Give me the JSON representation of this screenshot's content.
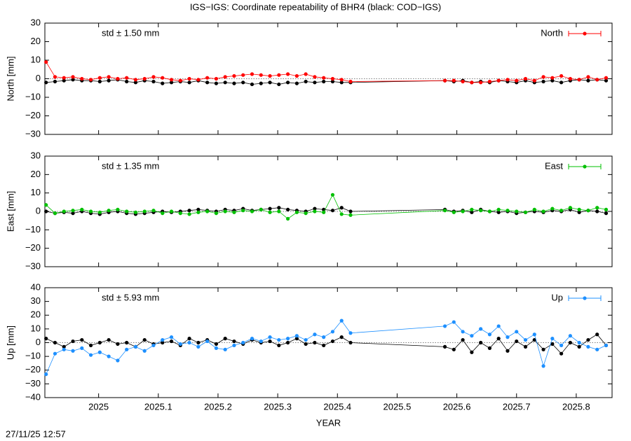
{
  "title": "IGS−IGS: Coordinate repeatability of BHR4 (black: COD−IGS)",
  "timestamp": "27/11/25 12:57",
  "chart_data": [
    {
      "type": "line",
      "ylabel": "North [mm]",
      "annotation": "std ± 1.50 mm",
      "x": [
        2024.912,
        2024.927,
        2024.942,
        2024.957,
        2024.972,
        2024.987,
        2025.002,
        2025.017,
        2025.032,
        2025.047,
        2025.062,
        2025.077,
        2025.092,
        2025.107,
        2025.122,
        2025.137,
        2025.152,
        2025.167,
        2025.182,
        2025.197,
        2025.212,
        2025.227,
        2025.242,
        2025.257,
        2025.272,
        2025.287,
        2025.302,
        2025.317,
        2025.332,
        2025.347,
        2025.362,
        2025.377,
        2025.392,
        2025.407,
        2025.422,
        2025.58,
        2025.595,
        2025.61,
        2025.625,
        2025.64,
        2025.655,
        2025.67,
        2025.685,
        2025.7,
        2025.715,
        2025.73,
        2025.745,
        2025.76,
        2025.775,
        2025.79,
        2025.805,
        2025.82,
        2025.835,
        2025.85
      ],
      "xlim": [
        2024.91,
        2025.86
      ],
      "ylim": [
        -30,
        30
      ],
      "yticks": [
        30,
        20,
        10,
        0,
        {
          "value": -10,
          "label": "−10"
        },
        {
          "value": -20,
          "label": "−20"
        },
        {
          "value": -30,
          "label": "−30"
        }
      ],
      "grid": false,
      "legend": "top-right",
      "series": [
        {
          "color": "#000000",
          "values": [
            -2,
            -1.5,
            -1,
            -0.5,
            -1,
            -1,
            -1.5,
            -1,
            -0.5,
            -1.5,
            -2,
            -1,
            -1.5,
            -2.5,
            -2,
            -1.5,
            -2,
            -1,
            -2,
            -2.5,
            -2,
            -2.5,
            -2,
            -3,
            -2.5,
            -2,
            -3,
            -2,
            -2.5,
            -1.5,
            -2,
            -1.5,
            -1.5,
            -2,
            -2,
            -1,
            -1.5,
            -1,
            -2,
            -1.5,
            -2,
            -1,
            -1.5,
            -2,
            -1,
            -2,
            -1.5,
            -1,
            -2,
            -1,
            -0.5,
            -1,
            -0.5,
            -1
          ]
        },
        {
          "name": "North",
          "color": "#ff0000",
          "values": [
            9,
            1,
            0.5,
            1,
            0,
            -0.5,
            0.5,
            1,
            0,
            0.5,
            -0.5,
            0,
            1,
            0.5,
            -0.5,
            -1,
            0,
            -0.5,
            0.5,
            0,
            1,
            1.5,
            2,
            2.5,
            2,
            1.5,
            2,
            2.5,
            1.5,
            2.5,
            1,
            0.5,
            0,
            -0.5,
            -1.5,
            -1,
            -1,
            -1.5,
            -2,
            -2,
            -1.5,
            -1,
            -0.5,
            -1,
            0,
            -1,
            1,
            0.5,
            1.5,
            0,
            -0.5,
            1,
            -0.5,
            0.5
          ]
        }
      ]
    },
    {
      "type": "line",
      "ylabel": "East [mm]",
      "annotation": "std ± 1.35 mm",
      "x": [
        2024.912,
        2024.927,
        2024.942,
        2024.957,
        2024.972,
        2024.987,
        2025.002,
        2025.017,
        2025.032,
        2025.047,
        2025.062,
        2025.077,
        2025.092,
        2025.107,
        2025.122,
        2025.137,
        2025.152,
        2025.167,
        2025.182,
        2025.197,
        2025.212,
        2025.227,
        2025.242,
        2025.257,
        2025.272,
        2025.287,
        2025.302,
        2025.317,
        2025.332,
        2025.347,
        2025.362,
        2025.377,
        2025.392,
        2025.407,
        2025.422,
        2025.58,
        2025.595,
        2025.61,
        2025.625,
        2025.64,
        2025.655,
        2025.67,
        2025.685,
        2025.7,
        2025.715,
        2025.73,
        2025.745,
        2025.76,
        2025.775,
        2025.79,
        2025.805,
        2025.82,
        2025.835,
        2025.85
      ],
      "xlim": [
        2024.91,
        2025.86
      ],
      "ylim": [
        -30,
        30
      ],
      "yticks": [
        30,
        20,
        10,
        0,
        {
          "value": -10,
          "label": "−10"
        },
        {
          "value": -20,
          "label": "−20"
        },
        {
          "value": -30,
          "label": "−30"
        }
      ],
      "grid": false,
      "legend": "top-right",
      "series": [
        {
          "color": "#000000",
          "values": [
            0,
            -1,
            -0.5,
            -1,
            0,
            -1,
            -1.5,
            -0.5,
            0,
            -1,
            -1.5,
            -1,
            -0.5,
            0,
            -0.5,
            0,
            0.5,
            1,
            0.5,
            0,
            1,
            0.5,
            1.5,
            0.5,
            1,
            1.5,
            2,
            1,
            0.5,
            0,
            1.5,
            1,
            0.5,
            2,
            0,
            1,
            0,
            0.5,
            -0.5,
            1,
            0,
            -0.5,
            0,
            -1,
            -0.5,
            0,
            -0.5,
            0.5,
            0,
            1,
            -0.5,
            0.5,
            0,
            -1
          ]
        },
        {
          "name": "East",
          "color": "#00c000",
          "values": [
            3.5,
            -1,
            0,
            0.5,
            1,
            0,
            -0.5,
            0.5,
            1,
            0,
            -0.5,
            0,
            0.5,
            -1,
            0,
            -1,
            -1.5,
            -0.5,
            0,
            -1,
            0,
            -0.5,
            0.5,
            0,
            1,
            -0.5,
            0,
            -4,
            -0.5,
            -1,
            0,
            -0.5,
            9,
            -1.5,
            -2,
            0.5,
            -0.5,
            0,
            1,
            0.5,
            0,
            1,
            0.5,
            0,
            -0.5,
            1,
            0,
            1.5,
            0.5,
            2,
            1,
            0.5,
            2,
            1
          ]
        }
      ]
    },
    {
      "type": "line",
      "ylabel": "Up [mm]",
      "annotation": "std ± 5.93 mm",
      "xlabel": "YEAR",
      "x": [
        2024.912,
        2024.927,
        2024.942,
        2024.957,
        2024.972,
        2024.987,
        2025.002,
        2025.017,
        2025.032,
        2025.047,
        2025.062,
        2025.077,
        2025.092,
        2025.107,
        2025.122,
        2025.137,
        2025.152,
        2025.167,
        2025.182,
        2025.197,
        2025.212,
        2025.227,
        2025.242,
        2025.257,
        2025.272,
        2025.287,
        2025.302,
        2025.317,
        2025.332,
        2025.347,
        2025.362,
        2025.377,
        2025.392,
        2025.407,
        2025.422,
        2025.58,
        2025.595,
        2025.61,
        2025.625,
        2025.64,
        2025.655,
        2025.67,
        2025.685,
        2025.7,
        2025.715,
        2025.73,
        2025.745,
        2025.76,
        2025.775,
        2025.79,
        2025.805,
        2025.82,
        2025.835,
        2025.85
      ],
      "xlim": [
        2024.91,
        2025.86
      ],
      "ylim": [
        -40,
        40
      ],
      "xticks": [
        2025,
        2025.1,
        2025.2,
        2025.3,
        2025.4,
        2025.5,
        2025.6,
        2025.7,
        2025.8
      ],
      "yticks": [
        40,
        30,
        20,
        10,
        0,
        {
          "value": -10,
          "label": "−10"
        },
        {
          "value": -20,
          "label": "−20"
        },
        {
          "value": -30,
          "label": "−30"
        },
        {
          "value": -40,
          "label": "−40"
        }
      ],
      "grid": false,
      "legend": "top-right",
      "series": [
        {
          "color": "#000000",
          "values": [
            3,
            0,
            -3,
            1,
            2,
            -2,
            0,
            2,
            -1,
            0,
            -3,
            2,
            -1,
            0,
            1,
            -2,
            3,
            0,
            2,
            -1,
            3,
            1,
            -1,
            2,
            0,
            1,
            -2,
            0,
            3,
            -1,
            0,
            -2,
            1,
            4,
            0,
            -3,
            -5,
            2,
            -7,
            0,
            -4,
            3,
            -6,
            1,
            -3,
            2,
            -5,
            -1,
            -8,
            0,
            -3,
            2,
            6,
            -2
          ]
        },
        {
          "name": "Up",
          "color": "#1e90ff",
          "values": [
            -23,
            -8,
            -5,
            -6,
            -4,
            -9,
            -7,
            -10,
            -13,
            -5,
            -3,
            -6,
            -2,
            2,
            4,
            -1,
            0,
            -3,
            1,
            -4,
            -5,
            -2,
            0,
            3,
            1,
            4,
            2,
            3,
            5,
            2,
            6,
            4,
            8,
            16,
            7,
            12,
            15,
            8,
            5,
            10,
            6,
            12,
            4,
            8,
            2,
            6,
            -17,
            3,
            -2,
            5,
            0,
            -3,
            -5,
            -2
          ]
        }
      ]
    }
  ]
}
